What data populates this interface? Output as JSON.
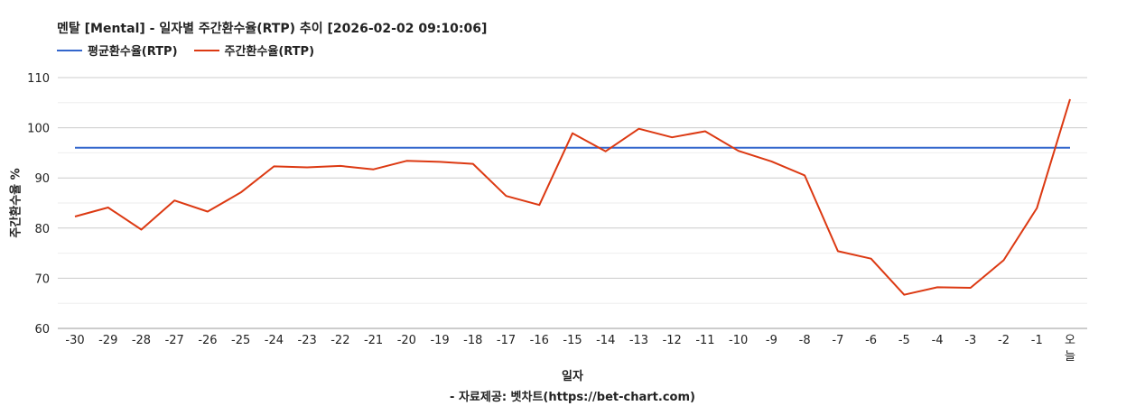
{
  "title": "멘탈 [Mental] - 일자별 주간환수율(RTP) 추이 [2026-02-02 09:10:06]",
  "legend": [
    {
      "label": "평균환수율(RTP)",
      "color": "#3366cc"
    },
    {
      "label": "주간환수율(RTP)",
      "color": "#dc3912"
    }
  ],
  "credit": "- 자료제공: 벳차트(https://bet-chart.com)",
  "chart_data": {
    "type": "line",
    "xlabel": "일자",
    "ylabel": "주간환수율 %",
    "ylim": [
      60,
      110
    ],
    "yticks": [
      60,
      70,
      80,
      90,
      100,
      110
    ],
    "grid": true,
    "legend_position": "top-left",
    "categories": [
      "-30",
      "-29",
      "-28",
      "-27",
      "-26",
      "-25",
      "-24",
      "-23",
      "-22",
      "-21",
      "-20",
      "-19",
      "-18",
      "-17",
      "-16",
      "-15",
      "-14",
      "-13",
      "-12",
      "-11",
      "-10",
      "-9",
      "-8",
      "-7",
      "-6",
      "-5",
      "-4",
      "-3",
      "-2",
      "-1",
      "오늘"
    ],
    "series": [
      {
        "name": "평균환수율(RTP)",
        "color": "#3366cc",
        "values": [
          96,
          96,
          96,
          96,
          96,
          96,
          96,
          96,
          96,
          96,
          96,
          96,
          96,
          96,
          96,
          96,
          96,
          96,
          96,
          96,
          96,
          96,
          96,
          96,
          96,
          96,
          96,
          96,
          96,
          96,
          96
        ]
      },
      {
        "name": "주간환수율(RTP)",
        "color": "#dc3912",
        "values": [
          82.3,
          84.1,
          79.7,
          85.5,
          83.3,
          87.1,
          92.3,
          92.1,
          92.4,
          91.7,
          93.4,
          93.2,
          92.8,
          86.4,
          84.6,
          98.9,
          95.3,
          99.8,
          98.1,
          99.3,
          95.4,
          93.3,
          90.5,
          75.4,
          73.9,
          66.7,
          68.2,
          68.1,
          73.6,
          84.0,
          105.7
        ]
      }
    ]
  }
}
